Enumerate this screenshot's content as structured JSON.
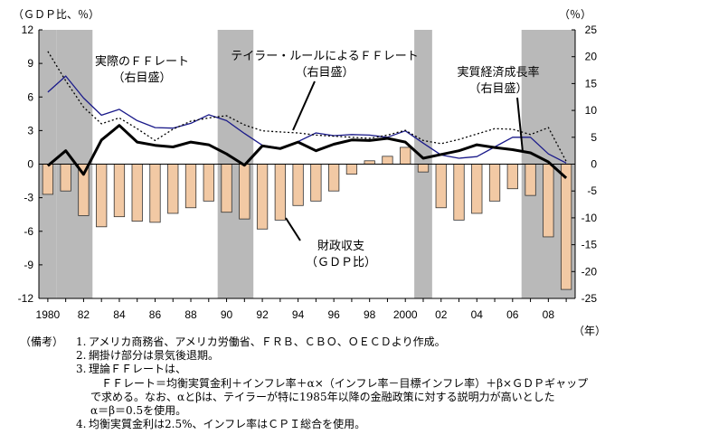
{
  "chart_data": {
    "type": "bar+line",
    "left_axis_unit": "（ＧＤＰ比、％）",
    "right_axis_unit": "（％）",
    "x_unit": "（年）",
    "left_ylim": [
      -12,
      12
    ],
    "left_ticks": [
      "12",
      "9",
      "6",
      "3",
      "0",
      "-3",
      "-6",
      "-9",
      "-12"
    ],
    "right_ylim": [
      -25,
      25
    ],
    "right_ticks": [
      "25",
      "20",
      "15",
      "10",
      "5",
      "0",
      "-5",
      "-10",
      "-15",
      "-20",
      "-25"
    ],
    "x_tick_labels": [
      "1980",
      "82",
      "84",
      "86",
      "88",
      "90",
      "92",
      "94",
      "96",
      "98",
      "2000",
      "02",
      "04",
      "06",
      "08"
    ],
    "years": [
      1980,
      1981,
      1982,
      1983,
      1984,
      1985,
      1986,
      1987,
      1988,
      1989,
      1990,
      1991,
      1992,
      1993,
      1994,
      1995,
      1996,
      1997,
      1998,
      1999,
      2000,
      2001,
      2002,
      2003,
      2004,
      2005,
      2006,
      2007,
      2008,
      2009
    ],
    "recession_shading": [
      [
        1980,
        1980
      ],
      [
        1981,
        1982
      ],
      [
        1990,
        1991
      ],
      [
        2001,
        2001
      ],
      [
        2007,
        2009
      ]
    ],
    "series": [
      {
        "name": "財政収支（ＧＤＰ比）",
        "axis": "left",
        "style": "bar",
        "color": "#f2c9a4",
        "values": [
          -2.7,
          -2.4,
          -4.6,
          -5.6,
          -4.7,
          -5.1,
          -5.2,
          -4.4,
          -3.9,
          -3.3,
          -4.3,
          -4.9,
          -5.8,
          -5.0,
          -3.7,
          -3.3,
          -2.4,
          -0.9,
          0.3,
          0.7,
          1.5,
          -0.7,
          -3.9,
          -5.0,
          -4.4,
          -3.3,
          -2.2,
          -2.8,
          -6.5,
          -11.2
        ]
      },
      {
        "name": "実際のＦＦレート（右目盛）",
        "axis": "right",
        "style": "line",
        "color": "#1a1a8a",
        "values": [
          13.4,
          16.4,
          12.3,
          9.1,
          10.2,
          8.1,
          6.8,
          6.7,
          7.6,
          9.2,
          8.1,
          5.7,
          3.5,
          3.0,
          4.2,
          5.8,
          5.3,
          5.5,
          5.4,
          5.0,
          6.2,
          3.9,
          1.7,
          1.1,
          1.4,
          3.2,
          5.0,
          5.0,
          1.9,
          0.2
        ]
      },
      {
        "name": "テイラー・ルールによるＦＦレート（右目盛）",
        "axis": "right",
        "style": "dotted",
        "color": "#000000",
        "values": [
          21.0,
          15.5,
          10.6,
          7.5,
          8.6,
          6.6,
          4.4,
          6.5,
          8.0,
          8.6,
          9.0,
          7.3,
          6.2,
          6.0,
          5.8,
          5.4,
          5.2,
          5.0,
          4.8,
          5.4,
          6.3,
          4.4,
          3.8,
          4.6,
          5.6,
          6.6,
          6.5,
          5.5,
          6.8,
          0.5
        ]
      },
      {
        "name": "実質経済成長率（右目盛）",
        "axis": "right",
        "style": "thick",
        "color": "#000000",
        "values": [
          -0.3,
          2.5,
          -1.9,
          4.5,
          7.2,
          4.1,
          3.5,
          3.2,
          4.1,
          3.6,
          1.9,
          -0.2,
          3.4,
          2.9,
          4.1,
          2.5,
          3.7,
          4.5,
          4.4,
          4.8,
          4.1,
          1.1,
          1.8,
          2.5,
          3.6,
          3.1,
          2.7,
          2.1,
          0.4,
          -2.6
        ]
      }
    ],
    "annotations": [
      {
        "label_lines": [
          "実際のＦＦレート",
          "（右目盛）"
        ]
      },
      {
        "label_lines": [
          "テイラー・ルールによるＦＦレート",
          "（右目盛）"
        ]
      },
      {
        "label_lines": [
          "実質経済成長率",
          "（右目盛）"
        ]
      },
      {
        "label_lines": [
          "財政収支",
          "（ＧＤＰ比）"
        ]
      }
    ]
  },
  "notes": {
    "key": "（備考）",
    "items": [
      {
        "num": "1.",
        "lines": [
          "アメリカ商務省、アメリカ労働省、ＦＲＢ、ＣＢＯ、ＯＥＣＤより作成。"
        ]
      },
      {
        "num": "2.",
        "lines": [
          "網掛け部分は景気後退期。"
        ]
      },
      {
        "num": "3.",
        "lines": [
          "理論ＦＦレートは、",
          "ＦＦレート＝均衡実質金利＋インフレ率＋α×（インフレ率－目標インフレ率）＋β×ＧＤＰギャップ",
          "で求める。なお、αとβは、テイラーが特に1985年以降の金融政策に対する説明力が高いとした",
          "α＝β＝0.5を使用。"
        ]
      },
      {
        "num": "4.",
        "lines": [
          "均衡実質金利は2.5%、インフレ率はＣＰＩ総合を使用。"
        ]
      }
    ]
  }
}
